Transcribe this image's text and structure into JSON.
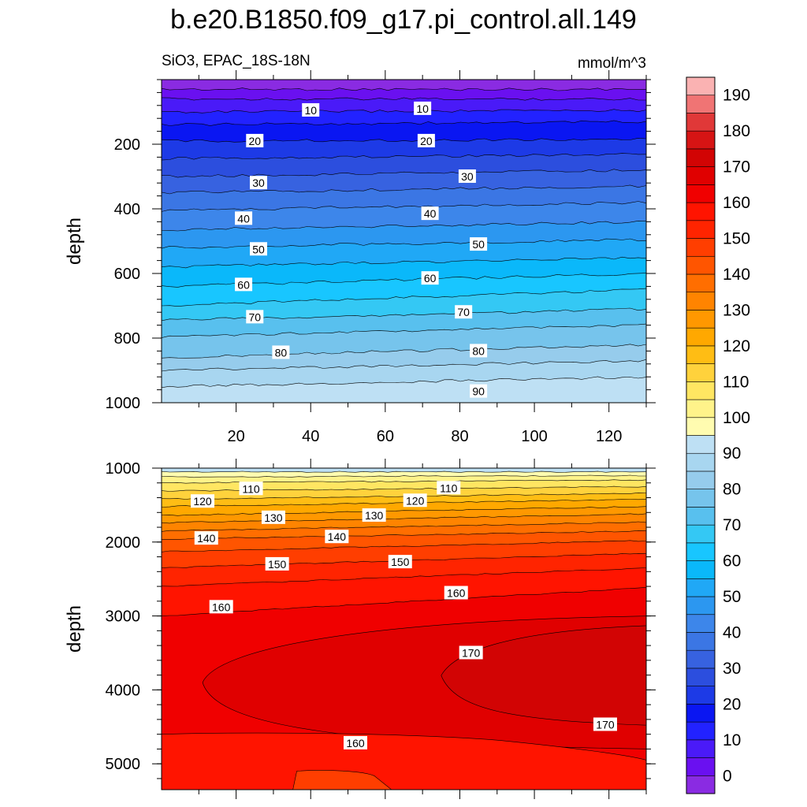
{
  "title": "b.e20.B1850.f09_g17.pi_control.all.149",
  "subtitle_left": "SiO3, EPAC_18S-18N",
  "subtitle_right": "mmol/m^3",
  "chart_data": [
    {
      "type": "contour",
      "panel": "upper",
      "ylabel": "depth",
      "xlim": [
        0,
        130
      ],
      "ylim": [
        1000,
        0
      ],
      "x_ticks": [
        20,
        40,
        60,
        80,
        100,
        120
      ],
      "y_ticks": [
        200,
        400,
        600,
        800,
        1000
      ],
      "contour_levels": [
        {
          "value": 0,
          "depth": [
            30,
            30
          ]
        },
        {
          "value": 5,
          "depth": [
            60,
            60
          ]
        },
        {
          "value": 10,
          "depth": [
            100,
            95
          ]
        },
        {
          "value": 15,
          "depth": [
            140,
            130
          ]
        },
        {
          "value": 20,
          "depth": [
            190,
            185
          ]
        },
        {
          "value": 25,
          "depth": [
            245,
            230
          ]
        },
        {
          "value": 30,
          "depth": [
            300,
            280
          ]
        },
        {
          "value": 35,
          "depth": [
            350,
            330
          ]
        },
        {
          "value": 40,
          "depth": [
            405,
            380
          ]
        },
        {
          "value": 45,
          "depth": [
            465,
            440
          ]
        },
        {
          "value": 50,
          "depth": [
            520,
            495
          ]
        },
        {
          "value": 55,
          "depth": [
            580,
            550
          ]
        },
        {
          "value": 60,
          "depth": [
            640,
            600
          ]
        },
        {
          "value": 65,
          "depth": [
            700,
            650
          ]
        },
        {
          "value": 70,
          "depth": [
            745,
            710
          ]
        },
        {
          "value": 75,
          "depth": [
            795,
            760
          ]
        },
        {
          "value": 80,
          "depth": [
            860,
            820
          ]
        },
        {
          "value": 85,
          "depth": [
            900,
            870
          ]
        },
        {
          "value": 90,
          "depth": [
            950,
            920
          ]
        }
      ],
      "contour_labels": [
        {
          "text": "10",
          "x": 40,
          "depth": 95
        },
        {
          "text": "10",
          "x": 70,
          "depth": 90
        },
        {
          "text": "20",
          "x": 25,
          "depth": 190
        },
        {
          "text": "20",
          "x": 71,
          "depth": 190
        },
        {
          "text": "30",
          "x": 26,
          "depth": 320
        },
        {
          "text": "30",
          "x": 82,
          "depth": 300
        },
        {
          "text": "40",
          "x": 22,
          "depth": 430
        },
        {
          "text": "40",
          "x": 72,
          "depth": 415
        },
        {
          "text": "50",
          "x": 26,
          "depth": 525
        },
        {
          "text": "50",
          "x": 85,
          "depth": 510
        },
        {
          "text": "60",
          "x": 22,
          "depth": 635
        },
        {
          "text": "60",
          "x": 72,
          "depth": 615
        },
        {
          "text": "70",
          "x": 25,
          "depth": 735
        },
        {
          "text": "70",
          "x": 81,
          "depth": 720
        },
        {
          "text": "80",
          "x": 32,
          "depth": 845
        },
        {
          "text": "80",
          "x": 85,
          "depth": 840
        },
        {
          "text": "90",
          "x": 85,
          "depth": 965
        }
      ]
    },
    {
      "type": "contour",
      "panel": "lower",
      "ylabel": "depth",
      "xlim": [
        0,
        130
      ],
      "ylim": [
        5350,
        1000
      ],
      "y_ticks": [
        1000,
        2000,
        3000,
        4000,
        5000
      ],
      "contour_levels": [
        {
          "value": 95,
          "depth": [
            1050,
            1050
          ]
        },
        {
          "value": 100,
          "depth": [
            1120,
            1100
          ]
        },
        {
          "value": 105,
          "depth": [
            1200,
            1160
          ]
        },
        {
          "value": 110,
          "depth": [
            1310,
            1250
          ]
        },
        {
          "value": 115,
          "depth": [
            1420,
            1340
          ]
        },
        {
          "value": 120,
          "depth": [
            1520,
            1420
          ]
        },
        {
          "value": 125,
          "depth": [
            1640,
            1520
          ]
        },
        {
          "value": 130,
          "depth": [
            1740,
            1620
          ]
        },
        {
          "value": 135,
          "depth": [
            1850,
            1730
          ]
        },
        {
          "value": 140,
          "depth": [
            1960,
            1850
          ]
        },
        {
          "value": 145,
          "depth": [
            2130,
            1980
          ]
        },
        {
          "value": 150,
          "depth": [
            2350,
            2150
          ]
        },
        {
          "value": 155,
          "depth": [
            2600,
            2350
          ]
        },
        {
          "value": 160,
          "depth": [
            3000,
            2620
          ]
        }
      ],
      "closed_regions": [
        {
          "value": 165,
          "x_range": [
            11,
            130
          ],
          "depth_range": [
            3000,
            4800
          ]
        },
        {
          "value": 170,
          "x_range": [
            75,
            130
          ],
          "depth_range": [
            3130,
            4480
          ]
        },
        {
          "value": 155,
          "x_range": [
            35,
            63
          ],
          "depth_range": [
            5100,
            5350
          ]
        }
      ],
      "contour_labels": [
        {
          "text": "110",
          "x": 24,
          "depth": 1280
        },
        {
          "text": "110",
          "x": 77,
          "depth": 1270
        },
        {
          "text": "120",
          "x": 11,
          "depth": 1450
        },
        {
          "text": "120",
          "x": 68,
          "depth": 1440
        },
        {
          "text": "130",
          "x": 30,
          "depth": 1670
        },
        {
          "text": "130",
          "x": 57,
          "depth": 1640
        },
        {
          "text": "140",
          "x": 12,
          "depth": 1950
        },
        {
          "text": "140",
          "x": 47,
          "depth": 1930
        },
        {
          "text": "150",
          "x": 31,
          "depth": 2300
        },
        {
          "text": "150",
          "x": 64,
          "depth": 2270
        },
        {
          "text": "160",
          "x": 16,
          "depth": 2880
        },
        {
          "text": "160",
          "x": 79,
          "depth": 2690
        },
        {
          "text": "170",
          "x": 83,
          "depth": 3500
        },
        {
          "text": "170",
          "x": 119,
          "depth": 4470
        },
        {
          "text": "160",
          "x": 52,
          "depth": 4720
        }
      ]
    }
  ],
  "colorbar": {
    "labels": [
      "0",
      "10",
      "20",
      "30",
      "40",
      "50",
      "60",
      "70",
      "80",
      "90",
      "100",
      "110",
      "120",
      "130",
      "140",
      "150",
      "160",
      "170",
      "180",
      "190"
    ],
    "levels": [
      -5,
      0,
      5,
      10,
      15,
      20,
      25,
      30,
      35,
      40,
      45,
      50,
      55,
      60,
      65,
      70,
      75,
      80,
      85,
      90,
      95,
      100,
      105,
      110,
      115,
      120,
      125,
      130,
      135,
      140,
      145,
      150,
      155,
      160,
      165,
      170,
      175,
      180,
      185,
      190,
      195
    ],
    "colors": [
      "#8a2be2",
      "#6a10f0",
      "#4a1af8",
      "#2222ff",
      "#0a16f2",
      "#1d3ae6",
      "#2c4ede",
      "#3762e0",
      "#3b76e4",
      "#3d86ea",
      "#2c97f0",
      "#20a8f6",
      "#0ab8fa",
      "#18c6ff",
      "#34c8f4",
      "#58c0ee",
      "#76c4ec",
      "#96ccec",
      "#a8d6f0",
      "#bee0f4",
      "#fffcb0",
      "#fff38a",
      "#ffe662",
      "#ffd23c",
      "#ffbd14",
      "#ffa800",
      "#ff9800",
      "#ff8400",
      "#ff6e00",
      "#ff5500",
      "#ff3e00",
      "#ff2400",
      "#ff1400",
      "#f00000",
      "#e00000",
      "#d20404",
      "#d61414",
      "#e03838",
      "#f07474",
      "#fab2b2"
    ]
  }
}
